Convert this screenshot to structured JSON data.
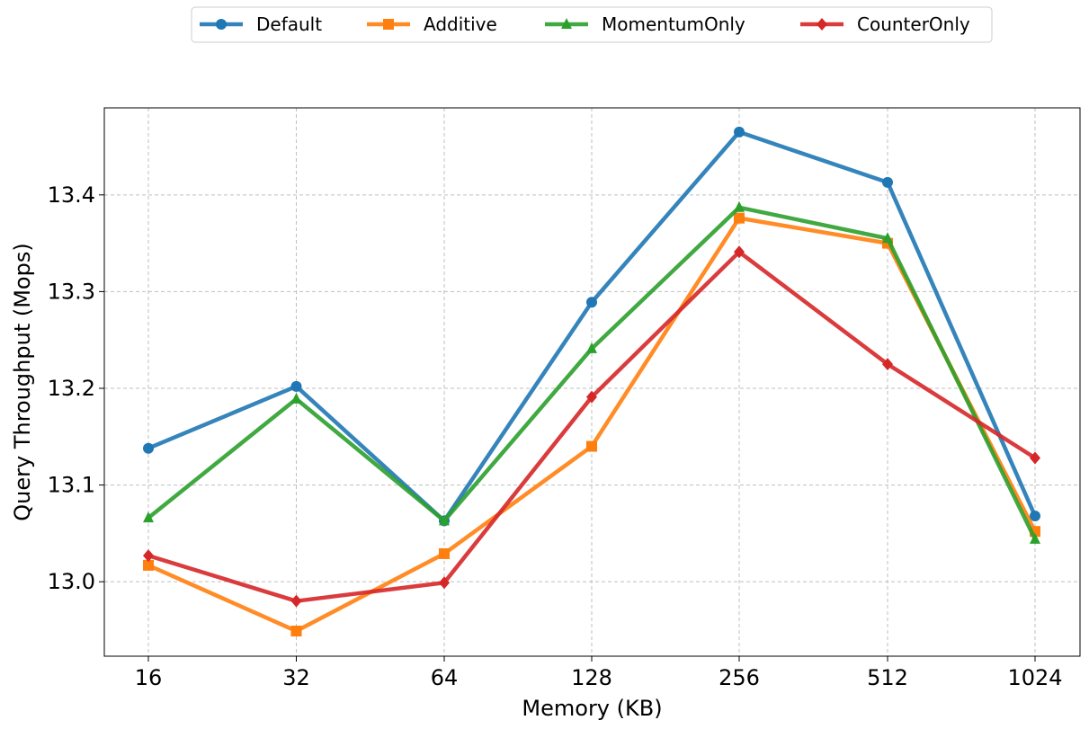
{
  "chart_data": {
    "type": "line",
    "categories": [
      "16",
      "32",
      "64",
      "128",
      "256",
      "512",
      "1024"
    ],
    "xlabel": "Memory (KB)",
    "ylabel": "Query Throughput (Mops)",
    "ylim": [
      12.923,
      13.49
    ],
    "yticks": [
      "13.0",
      "13.1",
      "13.2",
      "13.3",
      "13.4"
    ],
    "grid": true,
    "legend_position": "top-center",
    "series": [
      {
        "name": "Default",
        "color": "#1f77b4",
        "marker": "circle",
        "values": [
          13.138,
          13.202,
          13.063,
          13.289,
          13.465,
          13.413,
          13.068
        ]
      },
      {
        "name": "Additive",
        "color": "#ff7f0e",
        "marker": "square",
        "values": [
          13.017,
          12.949,
          13.029,
          13.14,
          13.376,
          13.35,
          13.052
        ]
      },
      {
        "name": "MomentumOnly",
        "color": "#2ca02c",
        "marker": "triangle",
        "values": [
          13.066,
          13.189,
          13.063,
          13.241,
          13.387,
          13.355,
          13.044
        ]
      },
      {
        "name": "CounterOnly",
        "color": "#d62728",
        "marker": "diamond",
        "values": [
          13.027,
          12.98,
          12.999,
          13.191,
          13.341,
          13.225,
          13.128
        ]
      }
    ]
  }
}
